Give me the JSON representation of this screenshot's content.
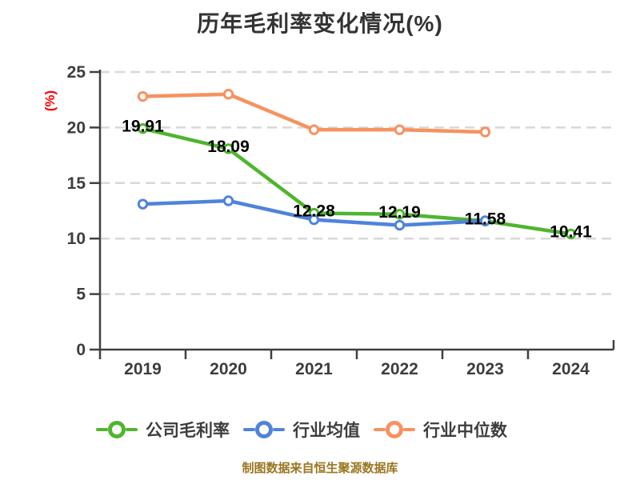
{
  "chart_data": {
    "type": "line",
    "title": "历年毛利率变化情况(%)",
    "ylabel": "(%)",
    "xlabel": "",
    "categories": [
      "2019",
      "2020",
      "2021",
      "2022",
      "2023",
      "2024"
    ],
    "ylim": [
      0,
      25
    ],
    "yticks": [
      0,
      5,
      10,
      15,
      20,
      25
    ],
    "grid": "horizontal-dashed",
    "legend_position": "bottom",
    "series": [
      {
        "key": "company-gross-margin",
        "name": "公司毛利率",
        "color": "#4FB52E",
        "values": [
          19.91,
          18.09,
          12.28,
          12.19,
          11.58,
          10.41
        ],
        "labels": [
          "19.91",
          "18.09",
          "12.28",
          "12.19",
          "11.58",
          "10.41"
        ],
        "show_labels": true
      },
      {
        "key": "industry-average",
        "name": "行业均值",
        "color": "#4F83DC",
        "values": [
          13.1,
          13.4,
          11.7,
          11.2,
          11.6,
          null
        ],
        "labels": [],
        "show_labels": false
      },
      {
        "key": "industry-median",
        "name": "行业中位数",
        "color": "#F6925F",
        "values": [
          22.8,
          23.0,
          19.8,
          19.8,
          19.6,
          null
        ],
        "labels": [],
        "show_labels": false
      }
    ]
  },
  "footer": "制图数据来自恒生聚源数据库",
  "colors": {
    "background": "#ffffff",
    "title": "#333333",
    "axis": "#404040",
    "grid": "#d8d8d8",
    "tick_label": "#3d3d3d",
    "ylabel": "#ff0000",
    "data_label": "#000000",
    "footer": "#9a761f",
    "marker_fill": "#ffffff"
  }
}
